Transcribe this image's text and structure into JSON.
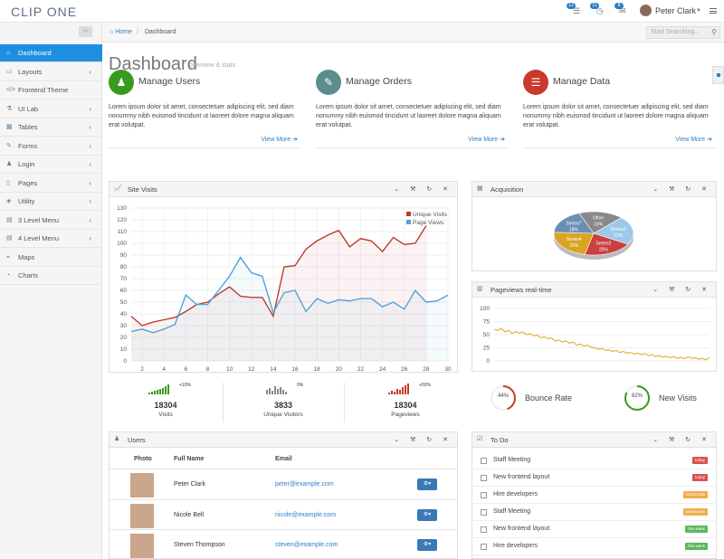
{
  "app": {
    "logo": "CLIP ONE"
  },
  "topbar": {
    "badges": [
      "12",
      "11",
      "8"
    ],
    "user_name": "Peter Clark"
  },
  "sidebar": {
    "items": [
      {
        "label": "Dashboard",
        "icon": "home-icon",
        "active": true,
        "chevron": false
      },
      {
        "label": "Layouts",
        "icon": "desktop-icon",
        "chevron": true
      },
      {
        "label": "Frontend Theme",
        "icon": "code-icon",
        "chevron": false
      },
      {
        "label": "UI Lab",
        "icon": "flask-icon",
        "chevron": true
      },
      {
        "label": "Tables",
        "icon": "table-icon",
        "chevron": true
      },
      {
        "label": "Forms",
        "icon": "pencil-icon",
        "chevron": true
      },
      {
        "label": "Login",
        "icon": "user-icon",
        "chevron": true
      },
      {
        "label": "Pages",
        "icon": "file-icon",
        "chevron": true
      },
      {
        "label": "Utility",
        "icon": "cube-icon",
        "chevron": true
      },
      {
        "label": "3 Level Menu",
        "icon": "folder-icon",
        "chevron": true
      },
      {
        "label": "4 Level Menu",
        "icon": "folder-icon",
        "chevron": true
      },
      {
        "label": "Maps",
        "icon": "map-marker-icon",
        "chevron": false
      },
      {
        "label": "Charts",
        "icon": "pie-chart-icon",
        "chevron": false
      }
    ]
  },
  "breadcrumb": {
    "home": "Home",
    "separator": "/",
    "current": "Dashboard"
  },
  "search": {
    "placeholder": "Start Searching..."
  },
  "page": {
    "title": "Dashboard",
    "subtitle": "overview & stats"
  },
  "features": [
    {
      "title": "Manage Users",
      "desc": "Lorem ipsum dolor sit amet, consectetuer adipiscing elit, sed diam nonummy nibh euismod tincidunt ut laoreet dolore magna aliquam erat volutpat.",
      "link": "View More",
      "color": "#3a9a1e"
    },
    {
      "title": "Manage Orders",
      "desc": "Lorem ipsum dolor sit amet, consectetuer adipiscing elit, sed diam nonummy nibh euismod tincidunt ut laoreet dolore magna aliquam erat volutpat.",
      "link": "View More",
      "color": "#5b8d8f"
    },
    {
      "title": "Manage Data",
      "desc": "Lorem ipsum dolor sit amet, consectetuer adipiscing elit, sed diam nonummy nibh euismod tincidunt ut laoreet dolore magna aliquam erat volutpat.",
      "link": "View More",
      "color": "#c93a2a"
    }
  ],
  "panels": {
    "site_visits": "Site Visits",
    "acquisition": "Acquisition",
    "pageviews": "Pageviews real-time",
    "users": "Users",
    "todo": "To Do"
  },
  "chart_data": [
    {
      "type": "line",
      "x": [
        1,
        2,
        3,
        4,
        5,
        6,
        7,
        8,
        9,
        10,
        11,
        12,
        13,
        14,
        15,
        16,
        17,
        18,
        19,
        20,
        21,
        22,
        23,
        24,
        25,
        26,
        27,
        28,
        29,
        30
      ],
      "xticks": [
        2,
        4,
        6,
        8,
        10,
        12,
        14,
        16,
        18,
        20,
        22,
        24,
        26,
        28,
        30
      ],
      "yticks": [
        0,
        10,
        20,
        30,
        40,
        50,
        60,
        70,
        80,
        90,
        100,
        110,
        120,
        130
      ],
      "ylim": [
        0,
        130
      ],
      "series": [
        {
          "name": "Unique Visits",
          "color": "#c0392b",
          "values": [
            38,
            30,
            33,
            35,
            37,
            42,
            48,
            50,
            57,
            63,
            55,
            54,
            54,
            38,
            80,
            81,
            95,
            102,
            107,
            111,
            97,
            104,
            102,
            93,
            105,
            99,
            100,
            115,
            null,
            null
          ]
        },
        {
          "name": "Page Views",
          "color": "#4fa3d9",
          "values": [
            25,
            27,
            24,
            27,
            31,
            56,
            48,
            48,
            60,
            72,
            88,
            75,
            72,
            41,
            58,
            60,
            42,
            53,
            49,
            52,
            51,
            53,
            53,
            46,
            50,
            44,
            60,
            50,
            51,
            56
          ]
        }
      ]
    },
    {
      "type": "pie",
      "slices": [
        {
          "label": "Other",
          "value": 18,
          "color": "#888888"
        },
        {
          "label": "Series2",
          "value": 21,
          "color": "#9dc9e8"
        },
        {
          "label": "Series3",
          "value": 20,
          "color": "#c94040"
        },
        {
          "label": "Series4",
          "value": 22,
          "color": "#d7a520"
        },
        {
          "label": "Series7",
          "value": 18,
          "color": "#6a8fb5"
        }
      ],
      "pct_labels": [
        "18%",
        "21%",
        "20%",
        "22%",
        "18%"
      ]
    },
    {
      "type": "line",
      "yticks": [
        0,
        25,
        50,
        75,
        100
      ],
      "ylim": [
        0,
        100
      ],
      "series": [
        {
          "color": "#e0a51a",
          "values": [
            60,
            58,
            62,
            55,
            58,
            52,
            56,
            53,
            55,
            50,
            52,
            48,
            49,
            44,
            46,
            42,
            44,
            38,
            40,
            36,
            38,
            34,
            36,
            30,
            32,
            28,
            30,
            26,
            25,
            22,
            24,
            20,
            21,
            18,
            20,
            16,
            18,
            15,
            16,
            13,
            15,
            12,
            14,
            10,
            12,
            8,
            10,
            7,
            9,
            6,
            8,
            5,
            7,
            4,
            8,
            5,
            6,
            3,
            5,
            2,
            6
          ]
        }
      ]
    }
  ],
  "stats": [
    {
      "value": "18304",
      "label": "Visits",
      "pct": "+10%",
      "color": "#3a9a1e",
      "bars": [
        2,
        3,
        4,
        5,
        6,
        7,
        9,
        11
      ]
    },
    {
      "value": "3833",
      "label": "Unique Visitors",
      "pct": "0%",
      "color": "#888888",
      "bars": [
        5,
        7,
        4,
        9,
        6,
        8,
        5,
        3
      ]
    },
    {
      "value": "18304",
      "label": "Pageviews",
      "pct": "+50%",
      "color": "#c93a2a",
      "bars": [
        2,
        4,
        3,
        6,
        5,
        8,
        10,
        12
      ]
    }
  ],
  "rings": [
    {
      "value": "44%",
      "label": "Bounce Rate",
      "fraction": 0.44,
      "color": "#c93a2a"
    },
    {
      "value": "82%",
      "label": "New Visits",
      "fraction": 0.82,
      "color": "#3a9a1e"
    }
  ],
  "users": {
    "headers": [
      "Photo",
      "Full Name",
      "Email"
    ],
    "rows": [
      {
        "name": "Peter Clark",
        "email": "peter@example.com"
      },
      {
        "name": "Nicole Bell",
        "email": "nicole@example.com"
      },
      {
        "name": "Steven Thompson",
        "email": "steven@example.com"
      }
    ]
  },
  "todo": [
    {
      "text": "Staff Meeting",
      "tag": "today",
      "color": "#d9534f"
    },
    {
      "text": "New frontend layout",
      "tag": "today",
      "color": "#d9534f"
    },
    {
      "text": "Hire developers",
      "tag": "tommorow",
      "color": "#f0ad4e"
    },
    {
      "text": "Staff Meeting",
      "tag": "tommorow",
      "color": "#f0ad4e"
    },
    {
      "text": "New frontend layout",
      "tag": "this week",
      "color": "#5cb85c"
    },
    {
      "text": "Hire developers",
      "tag": "this week",
      "color": "#5cb85c"
    }
  ]
}
